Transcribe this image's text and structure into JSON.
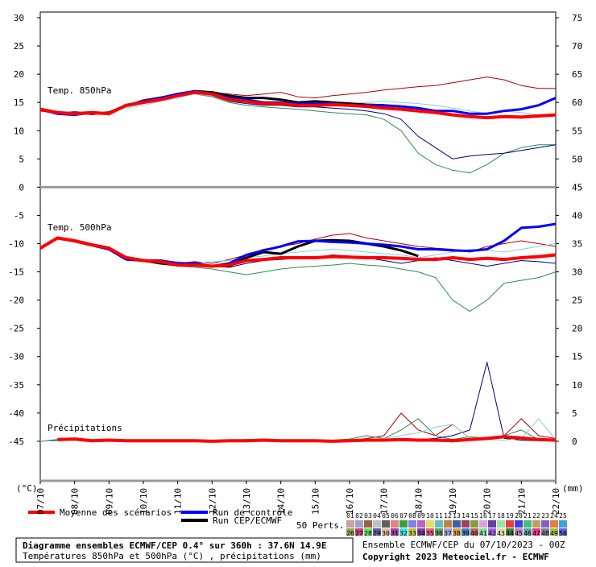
{
  "chart_data": {
    "type": "line",
    "title": "Diagramme ensembles ECMWF/CEP 0.4° sur 360h : 37.6N 14.9E",
    "subtitle": "Températures 850hPa et 500hPa (°C) , précipitations (mm)",
    "run_info": "Ensemble ECMWF/CEP du 07/10/2023 - 00Z",
    "copyright": "Copyright 2023 Meteociel.fr - ECMWF",
    "panel_labels": [
      "Temp. 850hPa",
      "Temp. 500hPa",
      "Précipitations"
    ],
    "ylabel": "(°C)",
    "y2label": "(mm)",
    "x": [
      0,
      12,
      24,
      36,
      48,
      60,
      72,
      84,
      96,
      108,
      120,
      132,
      144,
      156,
      168,
      180,
      192,
      204,
      216,
      228,
      240,
      252,
      264,
      276,
      288,
      300,
      312,
      324,
      336,
      348,
      360
    ],
    "xlim": [
      0,
      360
    ],
    "xticks": [
      {
        "value": 0,
        "label": "07/10"
      },
      {
        "value": 24,
        "label": "08/10"
      },
      {
        "value": 48,
        "label": "09/10"
      },
      {
        "value": 72,
        "label": "10/10"
      },
      {
        "value": 96,
        "label": "11/10"
      },
      {
        "value": 120,
        "label": "12/10"
      },
      {
        "value": 144,
        "label": "13/10"
      },
      {
        "value": 168,
        "label": "14/10"
      },
      {
        "value": 192,
        "label": "15/10"
      },
      {
        "value": 216,
        "label": "16/10"
      },
      {
        "value": 240,
        "label": "17/10"
      },
      {
        "value": 264,
        "label": "18/10"
      },
      {
        "value": 288,
        "label": "19/10"
      },
      {
        "value": 312,
        "label": "20/10"
      },
      {
        "value": 336,
        "label": "21/10"
      },
      {
        "value": 360,
        "label": "22/10"
      }
    ],
    "ylim": [
      -52,
      31
    ],
    "yticks": [
      30,
      25,
      20,
      15,
      10,
      5,
      0,
      -5,
      -10,
      -15,
      -20,
      -25,
      -30,
      -35,
      -40,
      -45
    ],
    "y2lim": [
      -7,
      76
    ],
    "y2ticks": [
      75,
      70,
      65,
      60,
      55,
      50,
      45,
      40,
      35,
      30,
      25,
      20,
      15,
      10,
      5,
      0
    ],
    "series": [
      {
        "name": "Moyenne des scénarios",
        "color": "#ff0000",
        "t850": [
          13.8,
          13.2,
          13.0,
          13.2,
          13.0,
          14.5,
          15.0,
          15.5,
          16.2,
          16.8,
          16.5,
          15.5,
          15.2,
          14.8,
          14.8,
          14.5,
          14.5,
          14.6,
          14.5,
          14.3,
          14.0,
          13.8,
          13.5,
          13.2,
          12.8,
          12.5,
          12.3,
          12.5,
          12.4,
          12.6,
          12.8
        ],
        "t500": [
          -10.8,
          -9.0,
          -9.5,
          -10.2,
          -10.8,
          -12.5,
          -13.0,
          -13.2,
          -13.8,
          -13.8,
          -14.0,
          -13.8,
          -13.0,
          -12.8,
          -12.5,
          -12.5,
          -12.5,
          -12.3,
          -12.4,
          -12.5,
          -12.5,
          -12.6,
          -12.8,
          -12.8,
          -12.5,
          -12.8,
          -12.6,
          -12.8,
          -12.5,
          -12.3,
          -12.0
        ],
        "precip": [
          null,
          0.3,
          0.4,
          0.1,
          0.2,
          0.1,
          0.1,
          0.1,
          0.1,
          0.1,
          0,
          0.1,
          0.1,
          0.2,
          0.1,
          0.1,
          0.1,
          0,
          0.1,
          0.2,
          0.2,
          0.3,
          0.2,
          0.2,
          0.1,
          0.3,
          0.5,
          0.8,
          0.6,
          0.3,
          0.2
        ]
      },
      {
        "name": "Run de contrôle",
        "color": "#0000ff",
        "t850": [
          13.8,
          13.0,
          12.8,
          13.2,
          13.0,
          14.5,
          15.2,
          15.8,
          16.5,
          17.0,
          16.5,
          15.8,
          15.5,
          15.0,
          15.0,
          14.8,
          14.8,
          14.8,
          14.5,
          14.5,
          14.5,
          14.3,
          14.0,
          13.5,
          13.5,
          13.0,
          13.0,
          13.5,
          13.8,
          14.5,
          15.8
        ],
        "t500": [
          -10.8,
          -9.0,
          -9.6,
          -10.3,
          -11.0,
          -12.8,
          -13.0,
          -13.0,
          -13.5,
          -13.5,
          -14.0,
          -13.5,
          -12.0,
          -11.2,
          -10.5,
          -9.6,
          -9.5,
          -9.7,
          -9.8,
          -10.0,
          -10.2,
          -10.5,
          -11.0,
          -11.0,
          -11.2,
          -11.3,
          -11.0,
          -9.5,
          -7.2,
          -7.0,
          -6.5
        ]
      },
      {
        "name": "Run CEP/ECMWF",
        "color": "#000000",
        "t850": [
          13.8,
          13.0,
          13.2,
          13.0,
          13.2,
          14.5,
          15.2,
          15.8,
          16.5,
          17.0,
          16.8,
          16.2,
          15.8,
          15.8,
          15.5,
          15.0,
          15.2,
          15.0,
          14.8,
          14.6,
          14.5,
          null,
          null,
          null,
          null,
          null,
          null,
          null,
          null,
          null,
          null
        ],
        "t500": [
          -10.8,
          -9.0,
          -9.5,
          -10.2,
          -11.0,
          -12.8,
          -13.0,
          -13.5,
          -13.8,
          -13.5,
          -14.0,
          -14.0,
          -12.5,
          -11.5,
          -11.8,
          -10.5,
          -9.5,
          -9.4,
          -9.5,
          -10.0,
          -10.5,
          -11.2,
          -12.2,
          null,
          null,
          null,
          null,
          null,
          null,
          null,
          null
        ]
      }
    ],
    "perturbations": [
      {
        "color": "#b00000",
        "t850": [
          13.5,
          13,
          13.2,
          13,
          13.2,
          14.5,
          15.5,
          16,
          16.5,
          17,
          16.8,
          16.5,
          16.2,
          16.5,
          16.8,
          16,
          15.8,
          16.2,
          16.5,
          16.8,
          17.2,
          17.5,
          17.8,
          18,
          18.5,
          19,
          19.5,
          19,
          18,
          17.5,
          17.5
        ],
        "t500": [
          -10.8,
          -9,
          -9.5,
          -10,
          -11,
          -12.5,
          -12.8,
          -13,
          -13.5,
          -13.2,
          -13.5,
          -12.8,
          -12,
          -11,
          -10.5,
          -10,
          -9.2,
          -8.5,
          -8.2,
          -9,
          -9.5,
          -10,
          -10.5,
          -10.8,
          -11,
          -11.5,
          -10.5,
          -10,
          -9.5,
          -10,
          -10.5
        ],
        "precip": [
          0,
          0.2,
          0.3,
          0.1,
          0.1,
          0,
          0,
          0,
          0,
          0.1,
          0,
          0.2,
          0.3,
          0.1,
          0,
          0.2,
          0.1,
          0,
          0.1,
          0.5,
          1,
          5,
          2,
          1,
          3,
          0.5,
          0.5,
          1,
          4,
          1,
          0.5
        ]
      },
      {
        "color": "#2e8b57",
        "t850": [
          13.8,
          13.2,
          13,
          13.2,
          13.2,
          14.2,
          14.8,
          15.5,
          16,
          16.5,
          16,
          15,
          14.5,
          14.2,
          14,
          13.8,
          13.5,
          13.2,
          13,
          12.8,
          12,
          10,
          6,
          4,
          3,
          2.5,
          4,
          6,
          7,
          7.5,
          7.5
        ],
        "t500": [
          -10.8,
          -9.2,
          -9.6,
          -10.4,
          -11,
          -12.8,
          -13.2,
          -13.5,
          -14,
          -14.2,
          -14.5,
          -15,
          -15.5,
          -15,
          -14.5,
          -14.2,
          -14,
          -13.8,
          -13.5,
          -13.8,
          -14,
          -14.5,
          -15,
          -16,
          -20,
          -22,
          -20,
          -17,
          -16.5,
          -16,
          -15
        ],
        "precip": [
          0,
          0.3,
          0.5,
          0.2,
          0.1,
          0.1,
          0,
          0,
          0.1,
          0,
          0.1,
          0.2,
          0.1,
          0,
          0.1,
          0,
          0.1,
          0.2,
          0.4,
          1,
          0.5,
          2,
          4,
          1,
          0.3,
          0.8,
          0.5,
          1,
          2,
          0.3,
          0.2
        ]
      },
      {
        "color": "#000080",
        "t850": [
          13.6,
          13,
          13.2,
          13.2,
          13,
          14.5,
          15,
          15.8,
          16.4,
          16.8,
          16.2,
          15.2,
          14.8,
          14.5,
          14.5,
          14.2,
          14.2,
          14,
          13.8,
          13.5,
          13,
          12,
          9,
          7,
          5,
          5.5,
          5.8,
          6,
          6.5,
          7,
          7.5
        ],
        "t500": [
          -10.8,
          -9.1,
          -9.5,
          -10.2,
          -11,
          -12.6,
          -13,
          -13.3,
          -13.6,
          -13.6,
          -14,
          -14.2,
          -13.5,
          -13,
          -12.8,
          -12.6,
          -12.5,
          -12,
          -12.2,
          -12.5,
          -13,
          -13.5,
          -13,
          -12.5,
          -13,
          -13.5,
          -14,
          -13.5,
          -13,
          -13.2,
          -13.5
        ],
        "precip": [
          0,
          0.2,
          0.3,
          0.1,
          0.1,
          0,
          0,
          0,
          0,
          0.1,
          0,
          0.1,
          0.1,
          0,
          0,
          0.1,
          0,
          0.1,
          0.2,
          0.3,
          0.1,
          0.5,
          0.3,
          0.5,
          1,
          2,
          14,
          0.5,
          0.2,
          0.1,
          0.1
        ]
      },
      {
        "color": "#87ceeb",
        "t850": [
          13.8,
          13.2,
          13.2,
          13,
          13.2,
          14,
          14.5,
          15.2,
          15.8,
          16.5,
          16.2,
          15.5,
          15,
          14.8,
          14.8,
          14.5,
          14.5,
          14.8,
          14.8,
          15,
          15.2,
          15,
          14.8,
          14.5,
          14,
          13.5,
          13,
          13.5,
          13.2,
          12.8,
          12.5
        ],
        "t500": [
          -10.8,
          -9,
          -9.5,
          -10.2,
          -10.8,
          -12.2,
          -12.8,
          -13,
          -13.2,
          -13.5,
          -13.2,
          -13,
          -12.5,
          -12.2,
          -11.8,
          -11.5,
          -11.2,
          -11,
          -11.2,
          -11.5,
          -11.8,
          -12,
          -12.5,
          -12,
          -11.5,
          -11,
          -11.2,
          -11.5,
          -11,
          -10.5,
          -10
        ],
        "precip": [
          0,
          0.1,
          0.2,
          0.1,
          0,
          0,
          0,
          0,
          0,
          0,
          0.1,
          0,
          0,
          0.1,
          0,
          0.1,
          0,
          0,
          0.1,
          0.3,
          0.5,
          1,
          1.5,
          2.5,
          3,
          0.5,
          0.3,
          0.2,
          0.5,
          4,
          0.3
        ]
      }
    ],
    "perturbation_legend": {
      "title": "50 Perts.",
      "labels": [
        "01",
        "02",
        "03",
        "04",
        "05",
        "06",
        "07",
        "08",
        "09",
        "10",
        "11",
        "12",
        "13",
        "14",
        "15",
        "16",
        "17",
        "18",
        "19",
        "20",
        "21",
        "22",
        "23",
        "24",
        "25",
        "26",
        "27",
        "28",
        "29",
        "30",
        "31",
        "32",
        "33",
        "34",
        "35",
        "36",
        "37",
        "38",
        "39",
        "40",
        "41",
        "42",
        "43",
        "44",
        "45",
        "46",
        "47",
        "48",
        "49",
        "50"
      ],
      "colors": [
        "#c8a0a0",
        "#a0a0c8",
        "#a06040",
        "#c0c0c0",
        "#606060",
        "#e08080",
        "#40a040",
        "#8080e0",
        "#c060c0",
        "#e0e060",
        "#60c0c0",
        "#c08040",
        "#4060a0",
        "#a04060",
        "#80a040",
        "#e0a0e0",
        "#6040a0",
        "#a0e0a0",
        "#e04040",
        "#4040e0",
        "#40c080",
        "#c0a060",
        "#8060c0",
        "#e08040",
        "#40a0e0",
        "#a0a060",
        "#c04080",
        "#60e060",
        "#6060a0",
        "#e0c0a0",
        "#a040a0",
        "#40e0e0",
        "#c0c040",
        "#8040a0",
        "#e06080",
        "#60a060",
        "#a0a0e0",
        "#e0a040",
        "#4080c0",
        "#c06060",
        "#80e0a0",
        "#a060e0",
        "#e0e0a0",
        "#408040",
        "#c080c0",
        "#60a0a0",
        "#e04080",
        "#8080a0",
        "#a0c040",
        "#6060e0"
      ]
    }
  }
}
